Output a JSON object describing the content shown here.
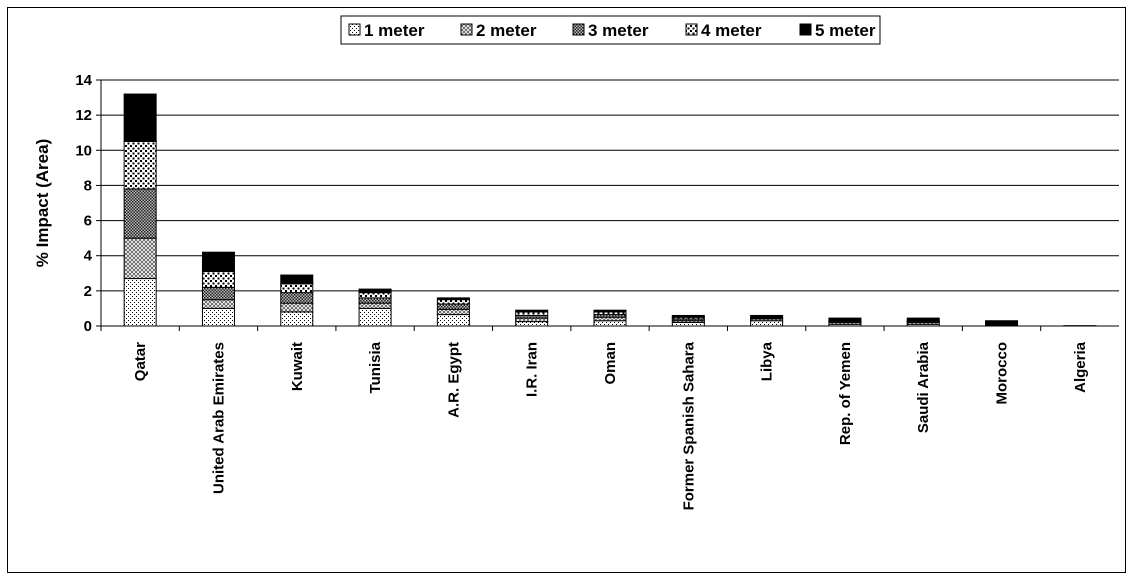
{
  "chart_data": {
    "type": "bar",
    "stacked": true,
    "ylabel": "% Impact (Area)",
    "ylim": [
      0,
      14
    ],
    "yticks": [
      0,
      2,
      4,
      6,
      8,
      10,
      12,
      14
    ],
    "grid": true,
    "legend_position": "top",
    "categories": [
      "Qatar",
      "United Arab Emirates",
      "Kuwait",
      "Tunisia",
      "A.R. Egypt",
      "I.R. Iran",
      "Oman",
      "Former Spanish Sahara",
      "Libya",
      "Rep. of Yemen",
      "Saudi Arabia",
      "Morocco",
      "Algeria"
    ],
    "series": [
      {
        "name": "1 meter",
        "pattern": "p1",
        "values": [
          2.7,
          1.0,
          0.8,
          1.0,
          0.65,
          0.25,
          0.3,
          0.2,
          0.3,
          0.1,
          0.1,
          0.05,
          0.0
        ]
      },
      {
        "name": "2 meter",
        "pattern": "p2",
        "values": [
          2.3,
          0.5,
          0.5,
          0.3,
          0.3,
          0.2,
          0.2,
          0.1,
          0.1,
          0.1,
          0.1,
          0.05,
          0.0
        ]
      },
      {
        "name": "3 meter",
        "pattern": "p3",
        "values": [
          2.8,
          0.7,
          0.6,
          0.3,
          0.3,
          0.15,
          0.15,
          0.1,
          0.05,
          0.05,
          0.05,
          0.05,
          0.0
        ]
      },
      {
        "name": "4 meter",
        "pattern": "p4",
        "values": [
          2.7,
          0.9,
          0.5,
          0.3,
          0.25,
          0.2,
          0.15,
          0.1,
          0.05,
          0.05,
          0.05,
          0.05,
          0.0
        ]
      },
      {
        "name": "5 meter",
        "pattern": "p5",
        "values": [
          2.7,
          1.1,
          0.5,
          0.2,
          0.1,
          0.1,
          0.1,
          0.1,
          0.1,
          0.15,
          0.15,
          0.1,
          0.02
        ]
      }
    ]
  }
}
